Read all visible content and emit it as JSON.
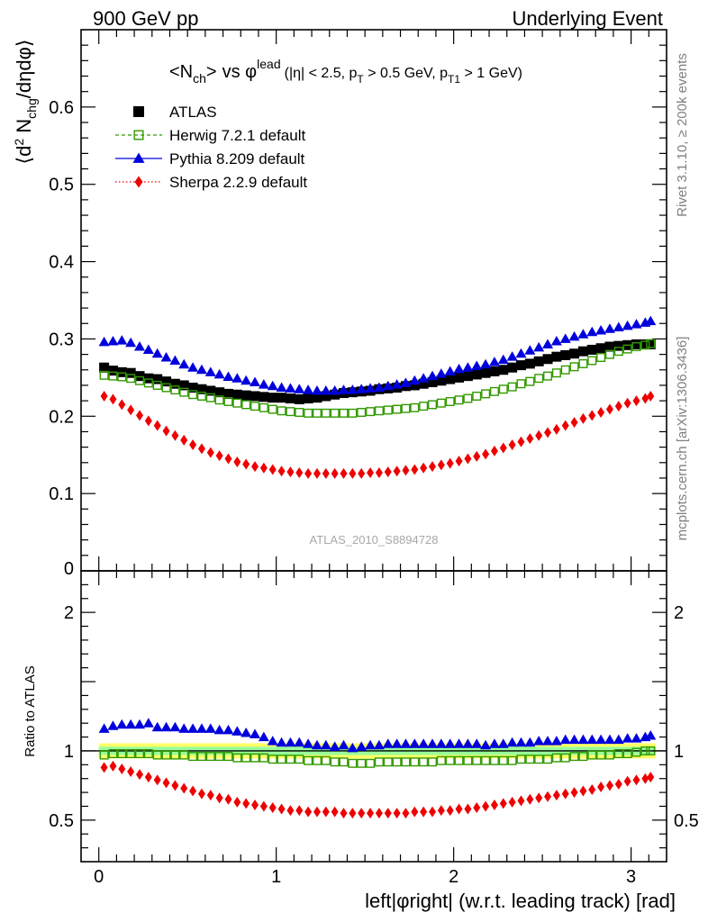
{
  "header": {
    "left": "900 GeV pp",
    "right": "Underlying Event"
  },
  "side_text": {
    "rivet": "Rivet 3.1.10, ≥ 200k events",
    "mcplots": "mcplots.cern.ch [arXiv:1306.3436]"
  },
  "watermark": "ATLAS_2010_S8894728",
  "colors": {
    "atlas": "#000000",
    "herwig": "#339900",
    "pythia": "#0000dd",
    "sherpa": "#ee0000",
    "band_inner": "#99ff99",
    "band_outer": "#ffff66"
  },
  "chart_data": [
    {
      "type": "scatter",
      "panel": "main",
      "title_parts": {
        "mean": "<N",
        "mean_sub": "ch",
        "mean_close": ">",
        "vs": "vs φ",
        "vs_sup": "lead",
        "cuts_a": "(|η| < 2.5, p",
        "cuts_sub_a": "T",
        "cuts_b": " > 0.5 GeV, p",
        "cuts_sub_b": "T1",
        "cuts_c": " > 1 GeV)"
      },
      "ylabel": "⟨d² Nᴄʜɢ/dηdφ⟩",
      "ylabel_parts": {
        "open": "⟨d",
        "sup": "2",
        "mid": " N",
        "sub": "chg",
        "close": "/dηdφ⟩"
      },
      "ylim": [
        0,
        0.7
      ],
      "yticks": [
        0.1,
        0.2,
        0.3,
        0.4,
        0.5,
        0.6
      ],
      "ytick_labels": [
        "0.1",
        "0.2",
        "0.3",
        "0.4",
        "0.5",
        "0.6"
      ],
      "ytick_zero_label": "0",
      "x": [
        0.03,
        0.08,
        0.13,
        0.18,
        0.23,
        0.28,
        0.33,
        0.38,
        0.43,
        0.48,
        0.53,
        0.58,
        0.63,
        0.68,
        0.73,
        0.78,
        0.83,
        0.88,
        0.93,
        0.98,
        1.03,
        1.08,
        1.13,
        1.18,
        1.23,
        1.28,
        1.33,
        1.38,
        1.43,
        1.48,
        1.53,
        1.58,
        1.63,
        1.68,
        1.73,
        1.78,
        1.83,
        1.88,
        1.93,
        1.98,
        2.03,
        2.08,
        2.13,
        2.18,
        2.23,
        2.28,
        2.33,
        2.38,
        2.43,
        2.48,
        2.53,
        2.58,
        2.63,
        2.68,
        2.73,
        2.78,
        2.83,
        2.88,
        2.93,
        2.98,
        3.03,
        3.08,
        3.11
      ],
      "legend": [
        {
          "label": "ATLAS",
          "style": "square-filled",
          "color": "#000000"
        },
        {
          "label": "Herwig 7.2.1 default",
          "style": "square-open-dashed",
          "color": "#339900"
        },
        {
          "label": "Pythia 8.209 default",
          "style": "triangle-solid",
          "color": "#0000dd"
        },
        {
          "label": "Sherpa 2.2.9 default",
          "style": "diamond-dotted",
          "color": "#ee0000"
        }
      ],
      "series": [
        {
          "name": "ATLAS",
          "values": [
            0.263,
            0.259,
            0.257,
            0.256,
            0.252,
            0.249,
            0.248,
            0.245,
            0.242,
            0.24,
            0.237,
            0.235,
            0.233,
            0.231,
            0.229,
            0.228,
            0.227,
            0.226,
            0.225,
            0.224,
            0.224,
            0.223,
            0.222,
            0.223,
            0.224,
            0.226,
            0.228,
            0.23,
            0.231,
            0.232,
            0.233,
            0.235,
            0.236,
            0.237,
            0.239,
            0.24,
            0.242,
            0.244,
            0.246,
            0.248,
            0.25,
            0.252,
            0.254,
            0.256,
            0.258,
            0.26,
            0.263,
            0.266,
            0.268,
            0.271,
            0.274,
            0.277,
            0.279,
            0.281,
            0.284,
            0.286,
            0.288,
            0.29,
            0.291,
            0.292,
            0.293,
            0.293,
            0.293
          ]
        },
        {
          "name": "Herwig 7.2.1 default",
          "values": [
            0.253,
            0.252,
            0.251,
            0.249,
            0.246,
            0.243,
            0.24,
            0.237,
            0.234,
            0.231,
            0.228,
            0.226,
            0.224,
            0.221,
            0.219,
            0.217,
            0.215,
            0.213,
            0.211,
            0.209,
            0.207,
            0.206,
            0.205,
            0.204,
            0.204,
            0.204,
            0.204,
            0.204,
            0.204,
            0.205,
            0.206,
            0.207,
            0.208,
            0.209,
            0.21,
            0.211,
            0.213,
            0.215,
            0.217,
            0.219,
            0.221,
            0.223,
            0.226,
            0.229,
            0.232,
            0.235,
            0.238,
            0.242,
            0.245,
            0.249,
            0.252,
            0.256,
            0.26,
            0.264,
            0.268,
            0.272,
            0.276,
            0.28,
            0.284,
            0.287,
            0.29,
            0.292,
            0.294
          ]
        },
        {
          "name": "Pythia 8.209 default",
          "values": [
            0.296,
            0.297,
            0.298,
            0.295,
            0.29,
            0.286,
            0.281,
            0.276,
            0.272,
            0.267,
            0.263,
            0.26,
            0.257,
            0.254,
            0.251,
            0.249,
            0.246,
            0.244,
            0.241,
            0.239,
            0.237,
            0.236,
            0.235,
            0.234,
            0.233,
            0.233,
            0.233,
            0.234,
            0.234,
            0.235,
            0.236,
            0.237,
            0.239,
            0.241,
            0.243,
            0.246,
            0.249,
            0.252,
            0.255,
            0.258,
            0.261,
            0.263,
            0.265,
            0.267,
            0.27,
            0.273,
            0.277,
            0.281,
            0.285,
            0.289,
            0.293,
            0.297,
            0.3,
            0.303,
            0.306,
            0.309,
            0.311,
            0.313,
            0.315,
            0.317,
            0.319,
            0.321,
            0.323
          ]
        },
        {
          "name": "Sherpa 2.2.9 default",
          "values": [
            0.226,
            0.222,
            0.215,
            0.208,
            0.201,
            0.194,
            0.188,
            0.181,
            0.175,
            0.169,
            0.163,
            0.158,
            0.153,
            0.149,
            0.145,
            0.141,
            0.138,
            0.135,
            0.133,
            0.131,
            0.129,
            0.128,
            0.127,
            0.126,
            0.126,
            0.126,
            0.126,
            0.126,
            0.126,
            0.126,
            0.127,
            0.127,
            0.128,
            0.129,
            0.13,
            0.131,
            0.133,
            0.135,
            0.137,
            0.139,
            0.142,
            0.145,
            0.148,
            0.151,
            0.155,
            0.159,
            0.163,
            0.167,
            0.171,
            0.175,
            0.179,
            0.183,
            0.188,
            0.192,
            0.197,
            0.201,
            0.205,
            0.209,
            0.213,
            0.217,
            0.22,
            0.223,
            0.226
          ]
        }
      ]
    },
    {
      "type": "scatter",
      "panel": "ratio",
      "ylabel": "Ratio to ATLAS",
      "xlabel": "left|φright| (w.r.t. leading track) [rad]",
      "xlim": [
        -0.1,
        3.2
      ],
      "xticks": [
        0,
        1,
        2,
        3
      ],
      "xtick_labels": [
        "0",
        "1",
        "2",
        "3"
      ],
      "ylim": [
        0.2,
        2.3
      ],
      "yticks": [
        0.5,
        1,
        2
      ],
      "ytick_labels": [
        "0.5",
        "1",
        "2"
      ],
      "uncertainty_band": {
        "inner": 0.03,
        "outer": 0.055
      },
      "series": [
        {
          "name": "Herwig 7.2.1 default",
          "values": [
            0.97,
            0.98,
            0.98,
            0.98,
            0.98,
            0.98,
            0.97,
            0.97,
            0.97,
            0.97,
            0.96,
            0.96,
            0.96,
            0.96,
            0.96,
            0.95,
            0.95,
            0.95,
            0.95,
            0.94,
            0.94,
            0.94,
            0.94,
            0.93,
            0.93,
            0.93,
            0.92,
            0.92,
            0.91,
            0.91,
            0.91,
            0.92,
            0.92,
            0.92,
            0.92,
            0.92,
            0.92,
            0.92,
            0.93,
            0.93,
            0.93,
            0.93,
            0.93,
            0.93,
            0.93,
            0.93,
            0.93,
            0.94,
            0.94,
            0.94,
            0.94,
            0.95,
            0.95,
            0.96,
            0.96,
            0.97,
            0.97,
            0.97,
            0.98,
            0.98,
            0.99,
            1.0,
            1.0
          ]
        },
        {
          "name": "Pythia 8.209 default",
          "values": [
            1.16,
            1.18,
            1.19,
            1.19,
            1.19,
            1.2,
            1.17,
            1.17,
            1.17,
            1.16,
            1.16,
            1.16,
            1.16,
            1.15,
            1.15,
            1.14,
            1.13,
            1.12,
            1.1,
            1.07,
            1.06,
            1.06,
            1.06,
            1.05,
            1.04,
            1.04,
            1.03,
            1.04,
            1.02,
            1.03,
            1.04,
            1.04,
            1.05,
            1.05,
            1.05,
            1.05,
            1.05,
            1.05,
            1.05,
            1.05,
            1.05,
            1.05,
            1.05,
            1.04,
            1.05,
            1.05,
            1.06,
            1.06,
            1.06,
            1.07,
            1.07,
            1.07,
            1.08,
            1.08,
            1.08,
            1.08,
            1.08,
            1.08,
            1.08,
            1.09,
            1.09,
            1.1,
            1.11
          ]
        },
        {
          "name": "Sherpa 2.2.9 default",
          "values": [
            0.88,
            0.89,
            0.87,
            0.85,
            0.83,
            0.81,
            0.79,
            0.77,
            0.75,
            0.73,
            0.71,
            0.69,
            0.68,
            0.66,
            0.65,
            0.63,
            0.62,
            0.61,
            0.6,
            0.59,
            0.58,
            0.57,
            0.57,
            0.56,
            0.56,
            0.56,
            0.56,
            0.55,
            0.55,
            0.55,
            0.55,
            0.55,
            0.55,
            0.55,
            0.55,
            0.56,
            0.56,
            0.56,
            0.57,
            0.57,
            0.58,
            0.58,
            0.59,
            0.6,
            0.61,
            0.62,
            0.63,
            0.64,
            0.65,
            0.66,
            0.67,
            0.68,
            0.69,
            0.7,
            0.71,
            0.72,
            0.74,
            0.75,
            0.76,
            0.78,
            0.79,
            0.8,
            0.81
          ]
        }
      ]
    }
  ]
}
